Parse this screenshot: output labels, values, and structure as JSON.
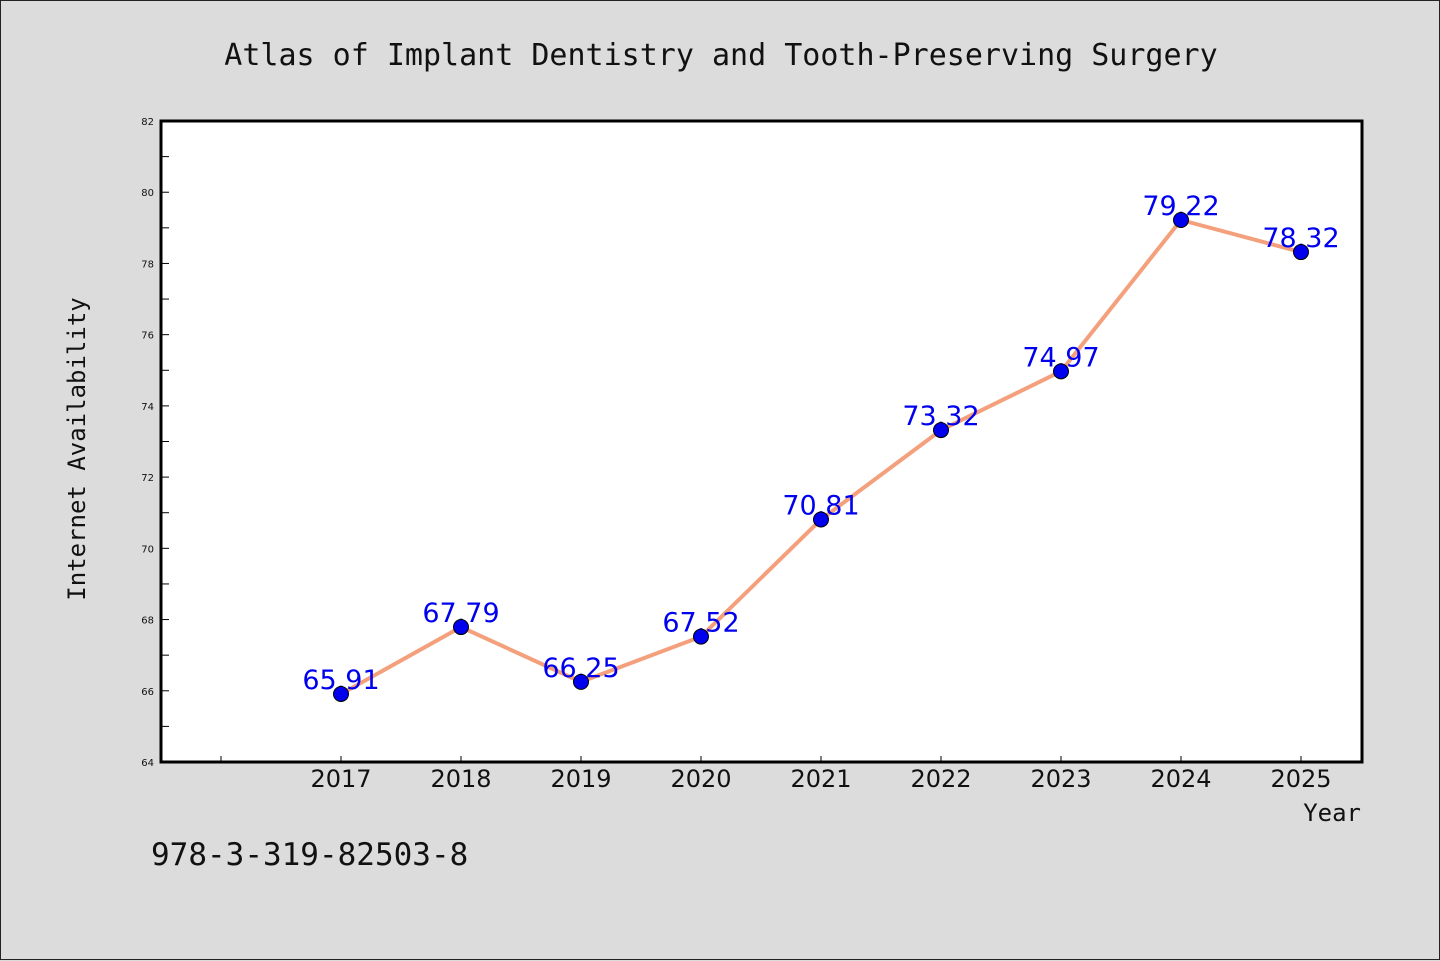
{
  "chart_data": {
    "type": "line",
    "title": "Atlas of Implant Dentistry and Tooth-Preserving Surgery",
    "xlabel": "Year",
    "ylabel": "Internet Availability",
    "categories": [
      "2017",
      "2018",
      "2019",
      "2020",
      "2021",
      "2022",
      "2023",
      "2024",
      "2025"
    ],
    "series": [
      {
        "values": [
          65.91,
          67.79,
          66.25,
          67.52,
          70.81,
          73.32,
          74.97,
          79.22,
          78.32
        ]
      }
    ],
    "data_labels": [
      "65.91",
      "67.79",
      "66.25",
      "67.52",
      "70.81",
      "73.32",
      "74.97",
      "79.22",
      "78.32"
    ],
    "ylim": [
      64,
      82
    ],
    "yticks": [
      "64",
      "66",
      "68",
      "70",
      "72",
      "74",
      "76",
      "78",
      "80",
      "82"
    ],
    "grid": false,
    "line_color": "#f4a07c",
    "marker_color": "#0000ee",
    "label_color": "#0000ee"
  },
  "footer": {
    "isbn": "978-3-319-82503-8"
  }
}
